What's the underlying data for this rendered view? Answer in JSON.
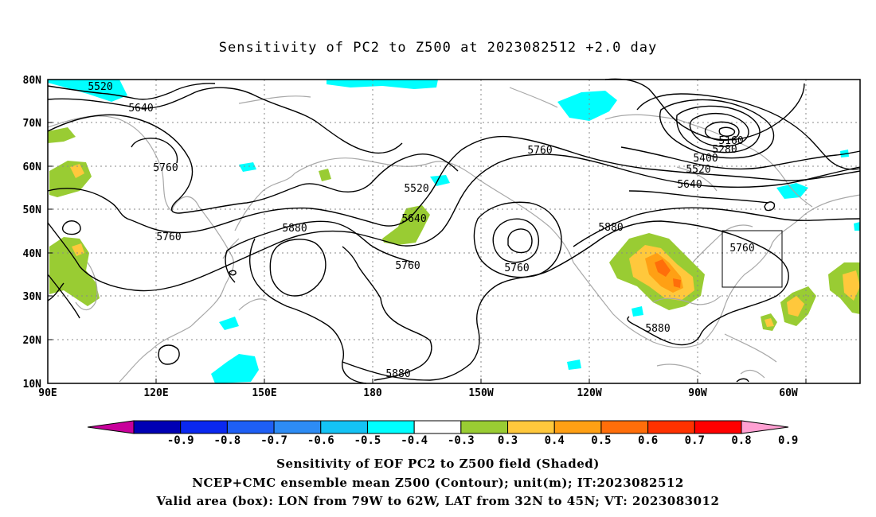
{
  "title": "Sensitivity of PC2 to Z500 at 2023082512 +2.0 day",
  "axes": {
    "lat_labels": [
      "80N",
      "70N",
      "60N",
      "50N",
      "40N",
      "30N",
      "20N",
      "10N"
    ],
    "lon_labels": [
      "90E",
      "120E",
      "150E",
      "180",
      "150W",
      "120W",
      "90W",
      "60W"
    ]
  },
  "contour_labels": {
    "l5520a": "5520",
    "l5640a": "5640",
    "l5760a": "5760",
    "l5760b": "5760",
    "l5880a": "5880",
    "l5760c": "5760",
    "l5520b": "5520",
    "l5640b": "5640",
    "l5760d": "5760",
    "l5760e": "5760",
    "l5880b": "5880",
    "l5880c": "5880",
    "l5880d": "5880",
    "l5160": "5160",
    "l5280": "5280",
    "l5400": "5400",
    "l5520c": "5520",
    "l5640c": "5640",
    "l5760f": "5760"
  },
  "colorbar": {
    "labels": [
      "-0.9",
      "-0.8",
      "-0.7",
      "-0.6",
      "-0.5",
      "-0.4",
      "-0.3",
      "0.3",
      "0.4",
      "0.5",
      "0.6",
      "0.7",
      "0.8",
      "0.9"
    ],
    "colors": [
      "#0000b4",
      "#0a28f0",
      "#1e5ff5",
      "#2d8cf5",
      "#14c3f5",
      "#00ffff",
      "#ffffff",
      "#99cc33",
      "#ffc83c",
      "#ffa014",
      "#ff6e0a",
      "#ff3200",
      "#ff0000"
    ],
    "low_end": "#c8009b",
    "high_end": "#ffa0d2"
  },
  "shading_colors": {
    "cyan": "#00ffff",
    "light_blue": "#14c3f5",
    "green": "#99cc33",
    "yellow": "#ffc83c",
    "orange": "#ffa014",
    "dark_orange": "#ff6e0a"
  },
  "footer": {
    "line1": "Sensitivity of EOF PC2 to Z500 field (Shaded)",
    "line2": "NCEP+CMC ensemble mean Z500 (Contour); unit(m); IT:2023082512",
    "line3": "Valid area (box): LON from 79W to 62W, LAT from 32N to 45N; VT: 2023083012"
  }
}
